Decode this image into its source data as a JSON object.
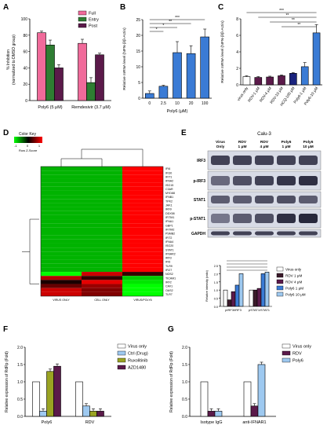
{
  "panel_letters": [
    "A",
    "B",
    "C",
    "D",
    "E",
    "F",
    "G"
  ],
  "chart_data": [
    {
      "id": "A",
      "type": "bar",
      "ylabel": "% Inhibition\n(normalized to DMSO group)",
      "ylim": [
        0,
        100
      ],
      "yticks": [
        "0",
        "20",
        "40",
        "60",
        "80",
        "100"
      ],
      "categories": [
        "Poly6 (5 μM)",
        "Remdesivir (3.7 μM)"
      ],
      "series": [
        {
          "name": "Full",
          "color": "#f06a9a",
          "values": [
            83,
            70
          ],
          "err": [
            2,
            5
          ]
        },
        {
          "name": "Entry",
          "color": "#2e7d32",
          "values": [
            68,
            22
          ],
          "err": [
            6,
            6
          ]
        },
        {
          "name": "Post",
          "color": "#5b1a4a",
          "values": [
            40,
            56
          ],
          "err": [
            4,
            2
          ]
        }
      ],
      "legend": "top-right"
    },
    {
      "id": "B",
      "type": "bar",
      "ylabel": "Relative mRNA level (hIFN-β/β-Actin)",
      "xlabel": "Poly6 (μM)",
      "ylim": [
        0,
        25
      ],
      "yticks": [
        "0",
        "5",
        "10",
        "15",
        "20",
        "25"
      ],
      "categories": [
        "0",
        "2.5",
        "10",
        "20",
        "100"
      ],
      "values": [
        1.5,
        3.8,
        14.5,
        14.2,
        19.5
      ],
      "err": [
        0.8,
        0.3,
        3.5,
        2.5,
        2.5
      ],
      "color": "#3a7bd5",
      "sig": [
        "*",
        "*",
        "**",
        "***"
      ]
    },
    {
      "id": "C",
      "type": "bar",
      "ylabel": "Relative mRNA level (hIFN-β/β-Actin)",
      "ylim": [
        0,
        8
      ],
      "yticks": [
        "0",
        "2",
        "4",
        "6",
        "8"
      ],
      "categories": [
        "virus only",
        "RDV-1 μM",
        "RDV-4 μM",
        "RDV-10 μM",
        "HCQ-100 μM",
        "Poly6-1 μM",
        "Poly6-10 μM"
      ],
      "values": [
        1.0,
        0.9,
        0.95,
        1.1,
        1.4,
        2.2,
        6.3
      ],
      "err": [
        0.1,
        0.1,
        0.1,
        0.1,
        0.1,
        0.5,
        1.0
      ],
      "colors": [
        "#ffffff",
        "#5b1a4a",
        "#5b1a4a",
        "#5b1a4a",
        "#1a237e",
        "#3a7bd5",
        "#3a7bd5"
      ],
      "sig": [
        "**",
        "**",
        "**",
        "***"
      ]
    },
    {
      "id": "E-bar",
      "type": "bar",
      "ylabel": "Relative intensity (ratio)",
      "ylim": [
        0,
        2.5
      ],
      "yticks": [
        "0.0",
        "0.5",
        "1.0",
        "1.5",
        "2.0",
        "2.5"
      ],
      "categories": [
        "pIRF3/IRF3",
        "pSTAT1/STAT1"
      ],
      "series": [
        {
          "name": "Virus only",
          "color": "#ffffff",
          "values": [
            1.0,
            1.0
          ]
        },
        {
          "name": "RDV 1 μM",
          "color": "#3a1a2a",
          "values": [
            0.4,
            1.0
          ]
        },
        {
          "name": "RDV 4 μM",
          "color": "#5b1a4a",
          "values": [
            0.9,
            1.1
          ]
        },
        {
          "name": "Poly6 1 μM",
          "color": "#3a7bd5",
          "values": [
            1.3,
            2.0
          ]
        },
        {
          "name": "Poly6 10 μM",
          "color": "#9ec9f0",
          "values": [
            2.0,
            2.1
          ]
        }
      ],
      "legend": "right"
    },
    {
      "id": "F",
      "type": "bar",
      "ylabel": "Relative expression of RdRp (Fold)",
      "ylim": [
        0,
        2.0
      ],
      "yticks": [
        "0.0",
        "0.5",
        "1.0",
        "1.5",
        "2.0"
      ],
      "categories": [
        "Poly6",
        "RDV"
      ],
      "series": [
        {
          "name": "Virus only",
          "color": "#ffffff",
          "values": [
            1.0,
            1.0
          ]
        },
        {
          "name": "Ctrl (Drug)",
          "color": "#9ec9f0",
          "values": [
            0.15,
            0.3
          ]
        },
        {
          "name": "Ruxolitinib",
          "color": "#9aa322",
          "values": [
            1.3,
            0.15
          ]
        },
        {
          "name": "AZD1480",
          "color": "#5b1a4a",
          "values": [
            1.45,
            0.15
          ]
        }
      ],
      "legend": "right"
    },
    {
      "id": "G",
      "type": "bar",
      "ylabel": "Relative expression of RdRp (Fold)",
      "ylim": [
        0,
        2.0
      ],
      "yticks": [
        "0.0",
        "0.5",
        "1.0",
        "1.5",
        "2.0"
      ],
      "categories": [
        "Isotype IgG",
        "anti-IFNAR1"
      ],
      "series": [
        {
          "name": "Virus only",
          "color": "#ffffff",
          "values": [
            1.0,
            1.0
          ]
        },
        {
          "name": "RDV",
          "color": "#5b1a4a",
          "values": [
            0.15,
            0.3
          ]
        },
        {
          "name": "Poly6",
          "color": "#9ec9f0",
          "values": [
            0.15,
            1.5
          ]
        }
      ],
      "legend": "right"
    }
  ],
  "heatmap": {
    "color_key_title": "Color Key",
    "scale_label": "Row Z-Score",
    "scale_ticks": [
      "-1",
      "0",
      "1"
    ],
    "genes": [
      "IFI6",
      "IFI30",
      "IFIT1",
      "IFNA2",
      "ISG15",
      "C3AR",
      "MYD88",
      "IFNB1",
      "TPK2",
      "JAK1",
      "IRF9",
      "DDX58",
      "IFITM1",
      "IFNA1",
      "GBP1",
      "IFITM2",
      "PSMB2",
      "IFIT2",
      "IFNA4",
      "ISG20",
      "STAT1",
      "IFNAR2",
      "IRF3",
      "IFI6",
      "TLR9",
      "IFI27",
      "NOS2",
      "TICAM1",
      "IRF2",
      "CAV1",
      "OAS2",
      "TLR7"
    ],
    "columns": [
      "VIRUS ONLY",
      "CELL ONLY",
      "VIRUS/POLY6"
    ]
  },
  "western": {
    "cell_line": "Calu-3",
    "lanes": [
      "Virus Only",
      "RDV 1 μM",
      "RDV 4 μM",
      "Poly6 1 μM",
      "Poly6 10 μM"
    ],
    "bands": [
      "IRF3",
      "p-IRF3",
      "STAT1",
      "p-STAT1",
      "GAPDH"
    ]
  }
}
